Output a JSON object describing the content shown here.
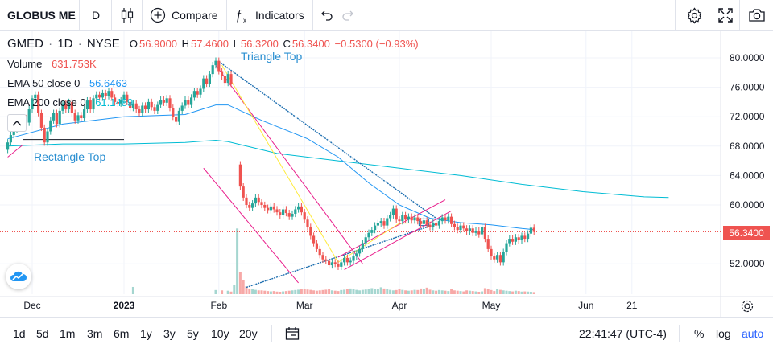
{
  "toolbar": {
    "symbol": "GLOBUS ME",
    "interval": "D",
    "compare_label": "Compare",
    "indicators_label": "Indicators"
  },
  "legend": {
    "ticker": "GMED",
    "interval": "1D",
    "exchange": "NYSE",
    "o_label": "O",
    "open": "56.9000",
    "h_label": "H",
    "high": "57.4600",
    "l_label": "L",
    "low": "56.3200",
    "c_label": "C",
    "close": "56.3400",
    "change": "−0.5300 (−0.93%)",
    "volume_label": "Volume",
    "volume": "631.753K",
    "ema50_label": "EMA 50 close 0",
    "ema50": "56.6463",
    "ema200_label": "EMA 200 close 0",
    "ema200": "61.1489"
  },
  "annotations": {
    "triangle_top": "Triangle Top",
    "rectangle_top": "Rectangle Top"
  },
  "current_price": "56.3400",
  "bottombar": {
    "ranges": [
      "1d",
      "5d",
      "1m",
      "3m",
      "6m",
      "1y",
      "3y",
      "5y",
      "10y",
      "20y"
    ],
    "time": "22:41:47 (UTC-4)",
    "percent": "%",
    "log": "log",
    "auto": "auto"
  },
  "colors": {
    "up": "#26a69a",
    "down": "#ef5350",
    "ema50": "#2196f3",
    "ema200": "#00bcd4",
    "pattern_pink": "#e91e8c",
    "pattern_yellow": "#ffeb3b",
    "trend_blue": "#1e6fb0",
    "accent": "#2962ff"
  },
  "chart_data": {
    "type": "candlestick",
    "title": "GMED 1D NYSE",
    "ylim": [
      48,
      82
    ],
    "y_ticks": [
      "80.0000",
      "76.0000",
      "72.0000",
      "68.0000",
      "64.0000",
      "60.0000",
      "52.0000"
    ],
    "y_tick_values": [
      80,
      76,
      72,
      68,
      64,
      60,
      52
    ],
    "x_ticks": [
      "Dec",
      "2023",
      "Feb",
      "Mar",
      "Apr",
      "May",
      "Jun",
      "21"
    ],
    "x_tick_days": [
      0,
      30,
      61,
      89,
      120,
      150,
      181,
      196
    ],
    "candles": [
      {
        "d": -8,
        "o": 67.5,
        "c": 68.5
      },
      {
        "d": -7,
        "o": 68.5,
        "c": 69.5
      },
      {
        "d": -6,
        "o": 69.5,
        "c": 70.2
      },
      {
        "d": -5,
        "o": 70.2,
        "c": 71.3
      },
      {
        "d": -4,
        "o": 71.3,
        "c": 70.6
      },
      {
        "d": -3,
        "o": 70.6,
        "c": 71.8
      },
      {
        "d": -2,
        "o": 71.8,
        "c": 71.2
      },
      {
        "d": -1,
        "o": 71.2,
        "c": 73.0
      },
      {
        "d": 0,
        "o": 73.0,
        "c": 74.5
      },
      {
        "d": 1,
        "o": 74.5,
        "c": 75.0
      },
      {
        "d": 2,
        "o": 75.0,
        "c": 72.5
      },
      {
        "d": 3,
        "o": 72.5,
        "c": 70.5
      },
      {
        "d": 4,
        "o": 70.5,
        "c": 68.5
      },
      {
        "d": 5,
        "o": 68.5,
        "c": 70.0
      },
      {
        "d": 6,
        "o": 70.0,
        "c": 71.5
      },
      {
        "d": 7,
        "o": 71.5,
        "c": 72.5
      },
      {
        "d": 8,
        "o": 72.5,
        "c": 71.0
      },
      {
        "d": 9,
        "o": 71.0,
        "c": 72.8
      },
      {
        "d": 10,
        "o": 72.8,
        "c": 73.8
      },
      {
        "d": 11,
        "o": 73.8,
        "c": 73.0
      },
      {
        "d": 12,
        "o": 73.0,
        "c": 74.0
      },
      {
        "d": 13,
        "o": 74.0,
        "c": 72.5
      },
      {
        "d": 14,
        "o": 72.5,
        "c": 71.5
      },
      {
        "d": 15,
        "o": 71.5,
        "c": 72.2
      },
      {
        "d": 16,
        "o": 72.2,
        "c": 71.8
      },
      {
        "d": 17,
        "o": 71.8,
        "c": 73.0
      },
      {
        "d": 18,
        "o": 73.0,
        "c": 74.2
      },
      {
        "d": 19,
        "o": 74.2,
        "c": 73.0
      },
      {
        "d": 20,
        "o": 73.0,
        "c": 74.5
      },
      {
        "d": 21,
        "o": 74.5,
        "c": 75.0
      },
      {
        "d": 22,
        "o": 75.0,
        "c": 74.6
      },
      {
        "d": 23,
        "o": 74.6,
        "c": 75.2
      },
      {
        "d": 24,
        "o": 75.2,
        "c": 74.8
      },
      {
        "d": 25,
        "o": 74.8,
        "c": 75.5
      },
      {
        "d": 26,
        "o": 75.5,
        "c": 74.6
      },
      {
        "d": 27,
        "o": 74.6,
        "c": 74.0
      },
      {
        "d": 28,
        "o": 74.0,
        "c": 73.8
      },
      {
        "d": 29,
        "o": 73.8,
        "c": 74.2
      },
      {
        "d": 30,
        "o": 74.2,
        "c": 75.0
      },
      {
        "d": 31,
        "o": 75.0,
        "c": 74.0
      },
      {
        "d": 32,
        "o": 74.0,
        "c": 73.2
      },
      {
        "d": 33,
        "o": 73.2,
        "c": 73.8
      },
      {
        "d": 34,
        "o": 73.8,
        "c": 73.0
      },
      {
        "d": 35,
        "o": 73.0,
        "c": 72.5
      },
      {
        "d": 36,
        "o": 72.5,
        "c": 73.5
      },
      {
        "d": 37,
        "o": 73.5,
        "c": 73.0
      },
      {
        "d": 38,
        "o": 73.0,
        "c": 74.0
      },
      {
        "d": 39,
        "o": 74.0,
        "c": 73.3
      },
      {
        "d": 40,
        "o": 73.3,
        "c": 72.8
      },
      {
        "d": 41,
        "o": 72.8,
        "c": 73.6
      },
      {
        "d": 42,
        "o": 73.6,
        "c": 74.3
      },
      {
        "d": 43,
        "o": 74.3,
        "c": 73.9
      },
      {
        "d": 44,
        "o": 73.9,
        "c": 74.5
      },
      {
        "d": 45,
        "o": 74.5,
        "c": 73.2
      },
      {
        "d": 46,
        "o": 73.2,
        "c": 72.0
      },
      {
        "d": 47,
        "o": 72.0,
        "c": 71.3
      },
      {
        "d": 48,
        "o": 71.3,
        "c": 72.8
      },
      {
        "d": 49,
        "o": 72.8,
        "c": 73.5
      },
      {
        "d": 50,
        "o": 73.5,
        "c": 74.3
      },
      {
        "d": 51,
        "o": 74.3,
        "c": 73.6
      },
      {
        "d": 52,
        "o": 73.6,
        "c": 74.6
      },
      {
        "d": 53,
        "o": 74.6,
        "c": 75.5
      },
      {
        "d": 54,
        "o": 75.5,
        "c": 75.0
      },
      {
        "d": 55,
        "o": 75.0,
        "c": 75.8
      },
      {
        "d": 56,
        "o": 75.8,
        "c": 77.2
      },
      {
        "d": 57,
        "o": 77.2,
        "c": 76.5
      },
      {
        "d": 58,
        "o": 76.5,
        "c": 77.8
      },
      {
        "d": 59,
        "o": 77.8,
        "c": 79.0
      },
      {
        "d": 60,
        "o": 79.0,
        "c": 79.6
      },
      {
        "d": 61,
        "o": 79.6,
        "c": 78.2
      },
      {
        "d": 62,
        "o": 78.2,
        "c": 77.5
      },
      {
        "d": 63,
        "o": 77.5,
        "c": 76.6
      },
      {
        "d": 64,
        "o": 76.6,
        "c": 77.8
      },
      {
        "d": 65,
        "o": 77.8,
        "c": 76.5
      },
      {
        "d": 68,
        "o": 65.5,
        "c": 62.5
      },
      {
        "d": 69,
        "o": 62.5,
        "c": 61.0
      },
      {
        "d": 70,
        "o": 61.0,
        "c": 60.0
      },
      {
        "d": 71,
        "o": 60.0,
        "c": 59.6
      },
      {
        "d": 72,
        "o": 59.6,
        "c": 60.2
      },
      {
        "d": 73,
        "o": 60.2,
        "c": 61.0
      },
      {
        "d": 74,
        "o": 61.0,
        "c": 60.4
      },
      {
        "d": 75,
        "o": 60.4,
        "c": 60.0
      },
      {
        "d": 76,
        "o": 60.0,
        "c": 59.6
      },
      {
        "d": 77,
        "o": 59.6,
        "c": 59.3
      },
      {
        "d": 78,
        "o": 59.3,
        "c": 59.8
      },
      {
        "d": 79,
        "o": 59.8,
        "c": 59.4
      },
      {
        "d": 80,
        "o": 59.4,
        "c": 59.0
      },
      {
        "d": 81,
        "o": 59.0,
        "c": 58.6
      },
      {
        "d": 82,
        "o": 58.6,
        "c": 59.4
      },
      {
        "d": 83,
        "o": 59.4,
        "c": 58.9
      },
      {
        "d": 84,
        "o": 58.9,
        "c": 58.4
      },
      {
        "d": 85,
        "o": 58.4,
        "c": 58.8
      },
      {
        "d": 86,
        "o": 58.8,
        "c": 59.4
      },
      {
        "d": 87,
        "o": 59.4,
        "c": 59.8
      },
      {
        "d": 88,
        "o": 59.8,
        "c": 59.0
      },
      {
        "d": 89,
        "o": 59.0,
        "c": 58.0
      },
      {
        "d": 90,
        "o": 58.0,
        "c": 57.0
      },
      {
        "d": 91,
        "o": 57.0,
        "c": 55.8
      },
      {
        "d": 92,
        "o": 55.8,
        "c": 54.8
      },
      {
        "d": 93,
        "o": 54.8,
        "c": 54.0
      },
      {
        "d": 94,
        "o": 54.0,
        "c": 53.2
      },
      {
        "d": 95,
        "o": 53.2,
        "c": 52.6
      },
      {
        "d": 96,
        "o": 52.6,
        "c": 52.4
      },
      {
        "d": 97,
        "o": 52.4,
        "c": 51.8
      },
      {
        "d": 98,
        "o": 51.8,
        "c": 52.2
      },
      {
        "d": 99,
        "o": 52.2,
        "c": 52.0
      },
      {
        "d": 100,
        "o": 52.0,
        "c": 51.6
      },
      {
        "d": 101,
        "o": 51.6,
        "c": 52.2
      },
      {
        "d": 102,
        "o": 52.2,
        "c": 52.8
      },
      {
        "d": 103,
        "o": 52.8,
        "c": 52.2
      },
      {
        "d": 104,
        "o": 52.2,
        "c": 52.4
      },
      {
        "d": 105,
        "o": 52.4,
        "c": 53.0
      },
      {
        "d": 106,
        "o": 53.0,
        "c": 53.4
      },
      {
        "d": 107,
        "o": 53.4,
        "c": 54.0
      },
      {
        "d": 108,
        "o": 54.0,
        "c": 54.8
      },
      {
        "d": 109,
        "o": 54.8,
        "c": 55.6
      },
      {
        "d": 110,
        "o": 55.6,
        "c": 56.2
      },
      {
        "d": 111,
        "o": 56.2,
        "c": 56.6
      },
      {
        "d": 112,
        "o": 56.6,
        "c": 57.2
      },
      {
        "d": 113,
        "o": 57.2,
        "c": 57.5
      },
      {
        "d": 114,
        "o": 57.5,
        "c": 57.8
      },
      {
        "d": 115,
        "o": 57.8,
        "c": 57.2
      },
      {
        "d": 116,
        "o": 57.2,
        "c": 58.2
      },
      {
        "d": 117,
        "o": 58.2,
        "c": 58.6
      },
      {
        "d": 118,
        "o": 58.6,
        "c": 59.5
      },
      {
        "d": 119,
        "o": 59.5,
        "c": 58.0
      },
      {
        "d": 120,
        "o": 58.0,
        "c": 57.8
      },
      {
        "d": 121,
        "o": 57.8,
        "c": 58.6
      },
      {
        "d": 122,
        "o": 58.6,
        "c": 58.0
      },
      {
        "d": 123,
        "o": 58.0,
        "c": 58.4
      },
      {
        "d": 124,
        "o": 58.4,
        "c": 57.9
      },
      {
        "d": 125,
        "o": 57.9,
        "c": 58.3
      },
      {
        "d": 126,
        "o": 58.3,
        "c": 57.8
      },
      {
        "d": 127,
        "o": 57.8,
        "c": 57.4
      },
      {
        "d": 128,
        "o": 57.4,
        "c": 57.9
      },
      {
        "d": 129,
        "o": 57.9,
        "c": 57.3
      },
      {
        "d": 130,
        "o": 57.3,
        "c": 57.0
      },
      {
        "d": 131,
        "o": 57.0,
        "c": 57.6
      },
      {
        "d": 132,
        "o": 57.6,
        "c": 57.2
      },
      {
        "d": 133,
        "o": 57.2,
        "c": 57.8
      },
      {
        "d": 134,
        "o": 57.8,
        "c": 58.3
      },
      {
        "d": 135,
        "o": 58.3,
        "c": 57.9
      },
      {
        "d": 136,
        "o": 57.9,
        "c": 58.4
      },
      {
        "d": 137,
        "o": 58.4,
        "c": 57.4
      },
      {
        "d": 138,
        "o": 57.4,
        "c": 57.0
      },
      {
        "d": 139,
        "o": 57.0,
        "c": 56.6
      },
      {
        "d": 140,
        "o": 56.6,
        "c": 57.2
      },
      {
        "d": 141,
        "o": 57.2,
        "c": 56.8
      },
      {
        "d": 142,
        "o": 56.8,
        "c": 56.4
      },
      {
        "d": 143,
        "o": 56.4,
        "c": 56.8
      },
      {
        "d": 144,
        "o": 56.8,
        "c": 56.2
      },
      {
        "d": 145,
        "o": 56.2,
        "c": 56.5
      },
      {
        "d": 146,
        "o": 56.5,
        "c": 56.0
      },
      {
        "d": 147,
        "o": 56.0,
        "c": 57.0
      },
      {
        "d": 148,
        "o": 57.0,
        "c": 55.4
      },
      {
        "d": 149,
        "o": 55.4,
        "c": 54.0
      },
      {
        "d": 150,
        "o": 54.0,
        "c": 53.0
      },
      {
        "d": 151,
        "o": 53.0,
        "c": 52.6
      },
      {
        "d": 152,
        "o": 52.6,
        "c": 53.2
      },
      {
        "d": 153,
        "o": 53.2,
        "c": 52.2
      },
      {
        "d": 154,
        "o": 52.2,
        "c": 53.6
      },
      {
        "d": 155,
        "o": 53.6,
        "c": 54.8
      },
      {
        "d": 156,
        "o": 54.8,
        "c": 55.4
      },
      {
        "d": 157,
        "o": 55.4,
        "c": 55.0
      },
      {
        "d": 158,
        "o": 55.0,
        "c": 55.6
      },
      {
        "d": 159,
        "o": 55.6,
        "c": 55.2
      },
      {
        "d": 160,
        "o": 55.2,
        "c": 55.8
      },
      {
        "d": 161,
        "o": 55.8,
        "c": 55.4
      },
      {
        "d": 162,
        "o": 55.4,
        "c": 56.1
      },
      {
        "d": 163,
        "o": 56.1,
        "c": 56.9
      },
      {
        "d": 164,
        "o": 56.9,
        "c": 56.34
      }
    ],
    "ema50": [
      [
        -8,
        69
      ],
      [
        10,
        71
      ],
      [
        30,
        72
      ],
      [
        50,
        72.3
      ],
      [
        60,
        73.6
      ],
      [
        64,
        73.6
      ],
      [
        75,
        71.5
      ],
      [
        90,
        69
      ],
      [
        100,
        66.5
      ],
      [
        110,
        63
      ],
      [
        120,
        60
      ],
      [
        130,
        58.2
      ],
      [
        140,
        57.6
      ],
      [
        150,
        57.3
      ],
      [
        160,
        56.8
      ],
      [
        164,
        56.65
      ]
    ],
    "ema200": [
      [
        -8,
        68
      ],
      [
        10,
        68.3
      ],
      [
        30,
        68.3
      ],
      [
        50,
        68.5
      ],
      [
        60,
        68.8
      ],
      [
        64,
        68.6
      ],
      [
        80,
        67
      ],
      [
        100,
        66
      ],
      [
        120,
        65
      ],
      [
        140,
        64
      ],
      [
        160,
        62.8
      ],
      [
        180,
        61.8
      ],
      [
        200,
        61.1
      ],
      [
        208,
        61.0
      ]
    ],
    "volume_days": [
      33,
      60,
      62,
      64,
      65,
      66,
      67,
      68,
      69,
      70,
      71,
      72,
      73,
      74,
      75,
      76,
      77,
      78,
      79,
      80,
      81,
      82,
      83,
      84,
      85,
      86,
      87,
      88,
      89,
      90,
      91,
      92,
      93,
      94,
      95,
      96,
      97,
      98,
      99,
      100,
      101,
      102,
      103,
      104,
      105,
      106,
      107,
      108,
      109,
      110,
      111,
      112,
      113,
      114,
      115,
      116,
      117,
      118,
      119,
      120,
      121,
      122,
      123,
      124,
      125,
      126,
      127,
      128,
      129,
      130,
      131,
      132,
      133,
      134,
      135,
      136,
      137,
      138,
      139,
      140,
      141,
      142,
      143,
      144,
      145,
      146,
      147,
      148,
      149,
      150,
      151,
      152,
      153,
      154,
      155,
      156,
      157,
      158,
      159,
      160,
      161,
      162,
      163,
      164
    ],
    "volume_values": [
      0.42,
      0.24,
      0.22,
      0.2,
      0.15,
      0.55,
      3.8,
      1.3,
      0.8,
      0.45,
      0.32,
      0.28,
      0.25,
      0.22,
      0.22,
      0.2,
      0.18,
      0.16,
      0.18,
      0.15,
      0.14,
      0.16,
      0.18,
      0.2,
      0.22,
      0.24,
      0.26,
      0.28,
      0.3,
      0.27,
      0.25,
      0.22,
      0.2,
      0.22,
      0.24,
      0.26,
      0.28,
      0.22,
      0.2,
      0.18,
      0.24,
      0.26,
      0.3,
      0.33,
      0.28,
      0.25,
      0.22,
      0.25,
      0.27,
      0.3,
      0.35,
      0.32,
      0.3,
      0.4,
      0.33,
      0.28,
      0.25,
      0.22,
      0.24,
      0.3,
      0.25,
      0.22,
      0.2,
      0.22,
      0.25,
      0.24,
      0.33,
      0.3,
      0.38,
      0.26,
      0.22,
      0.2,
      0.24,
      0.22,
      0.2,
      0.18,
      0.3,
      0.22,
      0.2,
      0.18,
      0.16,
      0.22,
      0.2,
      0.18,
      0.16,
      0.14,
      0.16,
      0.35,
      0.28,
      0.24,
      0.18,
      0.3,
      0.25,
      0.22,
      0.2,
      0.18,
      0.16,
      0.2,
      0.18,
      0.15,
      0.16,
      0.15,
      0.14,
      0.12
    ]
  }
}
